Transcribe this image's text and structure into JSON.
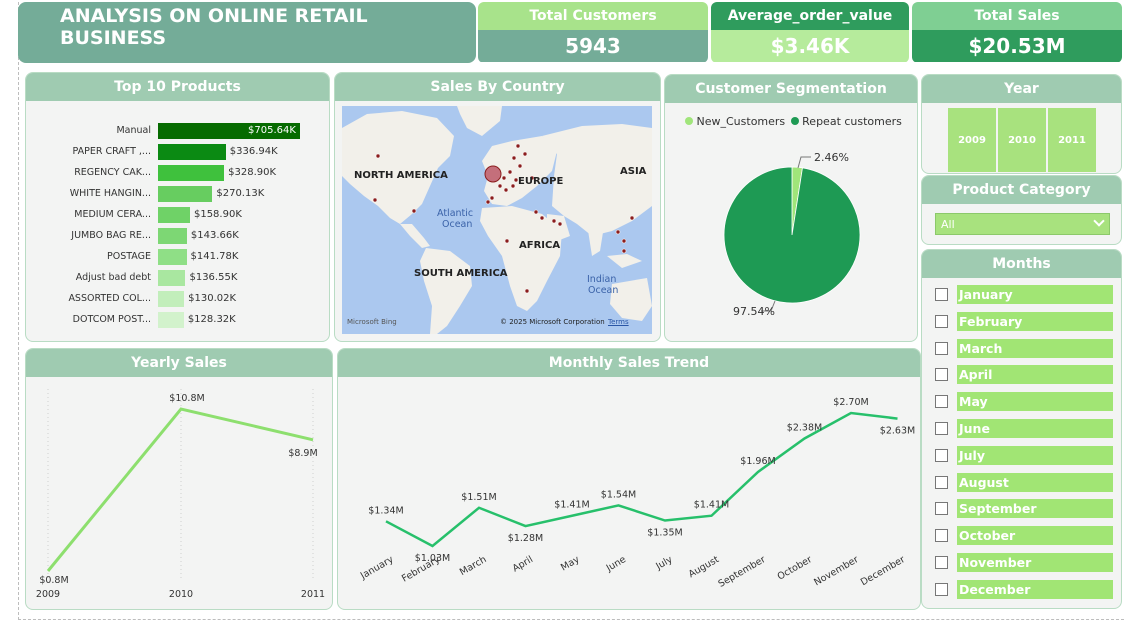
{
  "header": {
    "title": "ANALYSIS ON ONLINE RETAIL BUSINESS"
  },
  "kpis": {
    "total_customers": {
      "label": "Total Customers",
      "value": "5943"
    },
    "avg_order": {
      "label": "Average_order_value",
      "value": "$3.46K"
    },
    "total_sales": {
      "label": "Total Sales",
      "value": "$20.53M"
    }
  },
  "colors": {
    "accent_dark": "#2f9c5d",
    "accent_mid": "#74ac98",
    "accent_light": "#b5eaa0",
    "pie_repeat": "#1e9a54",
    "pie_new": "#a0e57a",
    "line_yearly": "#8ddf6e",
    "line_monthly": "#27c06b"
  },
  "top_products": {
    "title": "Top 10 Products",
    "chart_data": {
      "type": "bar",
      "categories": [
        "Manual",
        "PAPER CRAFT ,...",
        "REGENCY CAK...",
        "WHITE HANGIN...",
        "MEDIUM CERA...",
        "JUMBO BAG RE...",
        "POSTAGE",
        "Adjust bad debt",
        "ASSORTED COL...",
        "DOTCOM POST..."
      ],
      "values": [
        705.64,
        336.94,
        328.9,
        270.13,
        158.9,
        143.66,
        141.78,
        136.55,
        130.02,
        128.32
      ],
      "labels": [
        "$705.64K",
        "$336.94K",
        "$328.90K",
        "$270.13K",
        "$158.90K",
        "$143.66K",
        "$141.78K",
        "$136.55K",
        "$130.02K",
        "$128.32K"
      ],
      "unit": "K"
    }
  },
  "sales_by_country": {
    "title": "Sales By Country",
    "labels": {
      "north_america": "NORTH AMERICA",
      "europe": "EUROPE",
      "asia": "ASIA",
      "atlantic_1": "Atlantic",
      "atlantic_2": "Ocean",
      "africa": "AFRICA",
      "south_america": "SOUTH AMERICA",
      "indian_1": "Indian",
      "indian_2": "Ocean"
    },
    "bing": "Microsoft Bing",
    "copyright": "© 2025 Microsoft Corporation",
    "terms": "Terms"
  },
  "customer_segmentation": {
    "title": "Customer Segmentation",
    "chart_data": {
      "type": "pie",
      "legend_position": "top",
      "series": [
        {
          "name": "New_Customers",
          "value": 2.46,
          "label": "2.46%"
        },
        {
          "name": "Repeat customers",
          "value": 97.54,
          "label": "97.54%"
        }
      ]
    }
  },
  "year_slicer": {
    "title": "Year",
    "options": [
      "2009",
      "2010",
      "2011"
    ]
  },
  "category_slicer": {
    "title": "Product Category",
    "selected": "All"
  },
  "months_slicer": {
    "title": "Months",
    "items": [
      "January",
      "February",
      "March",
      "April",
      "May",
      "June",
      "July",
      "August",
      "September",
      "October",
      "November",
      "December"
    ]
  },
  "yearly_sales": {
    "title": "Yearly Sales",
    "chart_data": {
      "type": "line",
      "categories": [
        "2009",
        "2010",
        "2011"
      ],
      "values": [
        0.8,
        10.8,
        8.9
      ],
      "labels": [
        "$0.8M",
        "$10.8M",
        "$8.9M"
      ],
      "unit": "M"
    }
  },
  "monthly_sales": {
    "title": "Monthly Sales Trend",
    "chart_data": {
      "type": "line",
      "categories": [
        "January",
        "February",
        "March",
        "April",
        "May",
        "June",
        "July",
        "August",
        "September",
        "October",
        "November",
        "December"
      ],
      "values": [
        1.34,
        1.03,
        1.51,
        1.28,
        1.41,
        1.54,
        1.35,
        1.41,
        1.96,
        2.38,
        2.7,
        2.63
      ],
      "labels": [
        "$1.34M",
        "$1.03M",
        "$1.51M",
        "$1.28M",
        "$1.41M",
        "$1.54M",
        "$1.35M",
        "$1.41M",
        "$1.96M",
        "$2.38M",
        "$2.70M",
        "$2.63M"
      ],
      "unit": "M"
    }
  }
}
